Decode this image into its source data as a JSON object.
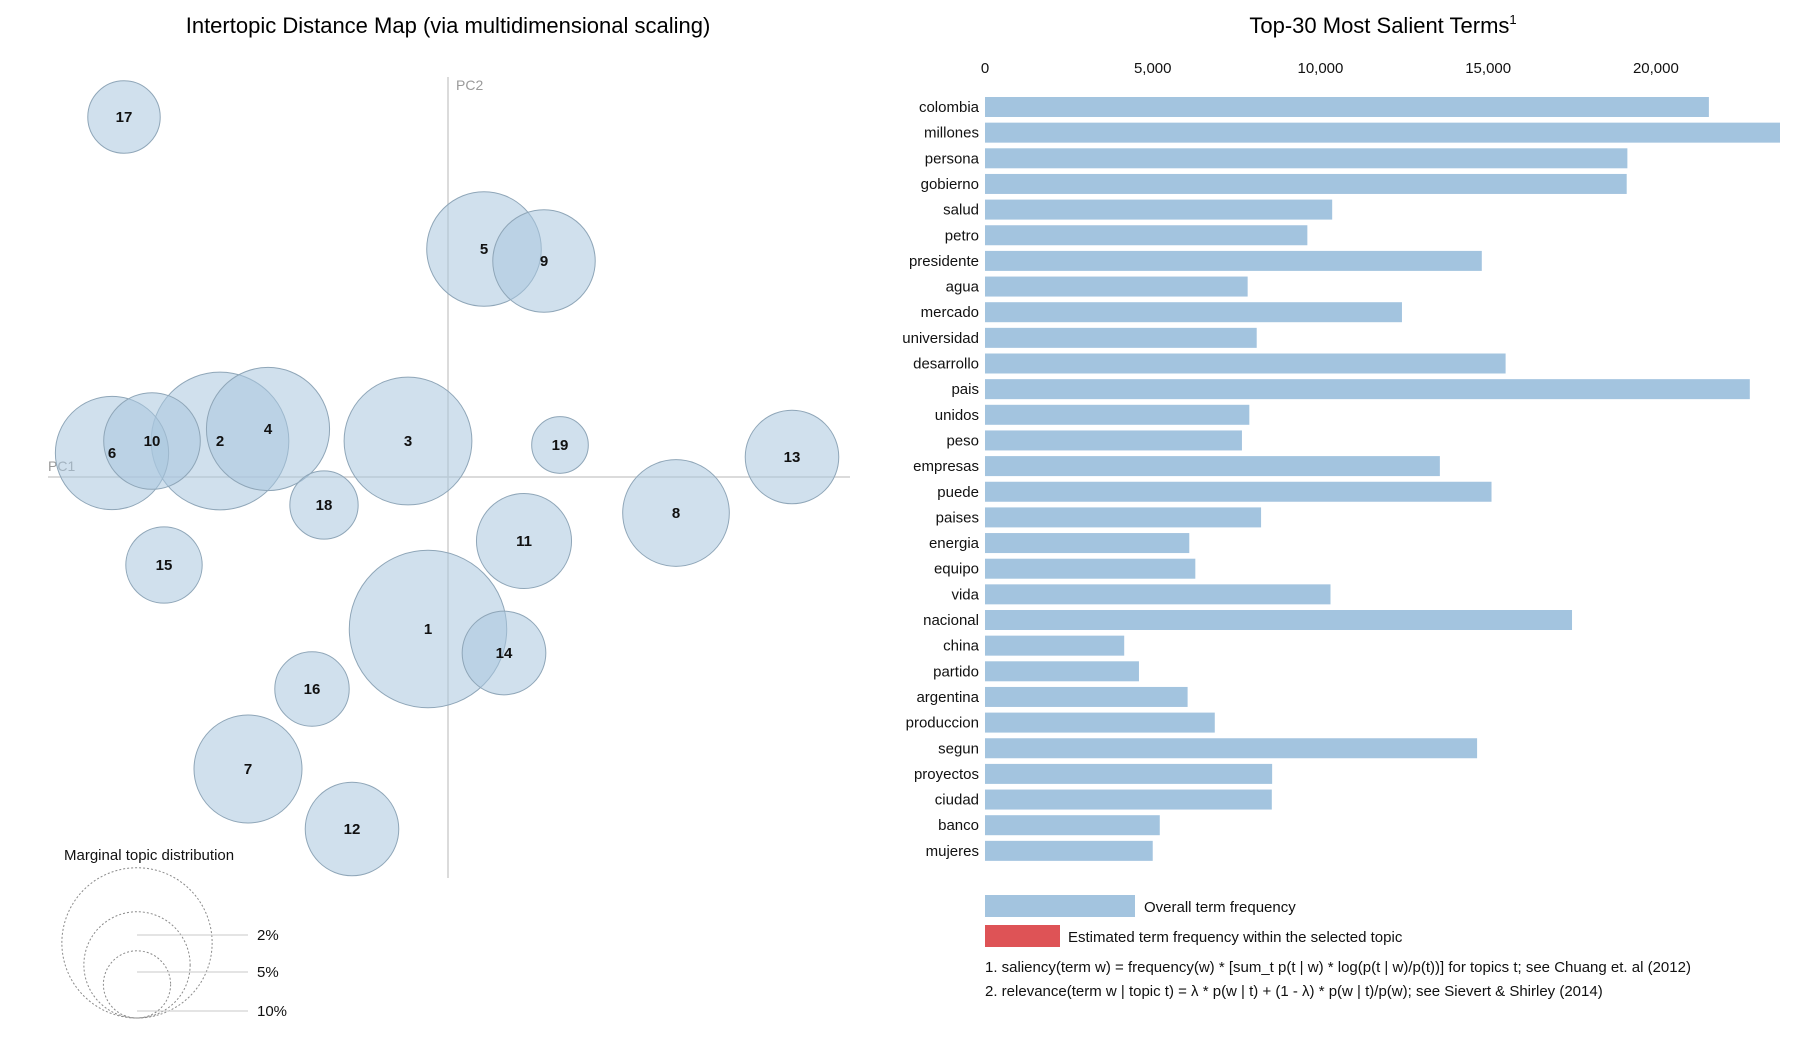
{
  "left_title": "Intertopic Distance Map (via multidimensional scaling)",
  "right_title": "Top-30 Most Salient Terms",
  "right_title_sup": "1",
  "colors": {
    "bubble_fill": "#a9c6de",
    "bubble_stroke": "#8fa6b8",
    "bar": "#a3c4df",
    "selected_bar": "#de5356",
    "axis": "#cfcfcf"
  },
  "chart_data": [
    {
      "type": "scatter",
      "subtype": "bubble",
      "title": "Intertopic Distance Map (via multidimensional scaling)",
      "xlabel": "PC1",
      "ylabel": "PC2",
      "grid": false,
      "points": [
        {
          "topic": "1",
          "x": -0.05,
          "y": -0.38,
          "size_pct": 8.5
        },
        {
          "topic": "2",
          "x": -0.57,
          "y": 0.09,
          "size_pct": 6.5
        },
        {
          "topic": "3",
          "x": -0.1,
          "y": 0.09,
          "size_pct": 5.6
        },
        {
          "topic": "4",
          "x": -0.45,
          "y": 0.12,
          "size_pct": 5.2
        },
        {
          "topic": "5",
          "x": 0.09,
          "y": 0.57,
          "size_pct": 4.5
        },
        {
          "topic": "6",
          "x": -0.84,
          "y": 0.06,
          "size_pct": 4.4
        },
        {
          "topic": "7",
          "x": -0.5,
          "y": -0.73,
          "size_pct": 4.0
        },
        {
          "topic": "8",
          "x": 0.57,
          "y": -0.09,
          "size_pct": 3.9
        },
        {
          "topic": "9",
          "x": 0.24,
          "y": 0.54,
          "size_pct": 3.6
        },
        {
          "topic": "10",
          "x": -0.74,
          "y": 0.09,
          "size_pct": 3.2
        },
        {
          "topic": "11",
          "x": 0.19,
          "y": -0.16,
          "size_pct": 3.1
        },
        {
          "topic": "12",
          "x": -0.24,
          "y": -0.88,
          "size_pct": 3.0
        },
        {
          "topic": "13",
          "x": 0.86,
          "y": 0.05,
          "size_pct": 3.0
        },
        {
          "topic": "14",
          "x": 0.14,
          "y": -0.44,
          "size_pct": 2.4
        },
        {
          "topic": "15",
          "x": -0.71,
          "y": -0.22,
          "size_pct": 2.0
        },
        {
          "topic": "16",
          "x": -0.34,
          "y": -0.53,
          "size_pct": 1.9
        },
        {
          "topic": "17",
          "x": -0.81,
          "y": 0.9,
          "size_pct": 1.8
        },
        {
          "topic": "18",
          "x": -0.31,
          "y": -0.07,
          "size_pct": 1.6
        },
        {
          "topic": "19",
          "x": 0.28,
          "y": 0.08,
          "size_pct": 1.1
        }
      ],
      "size_legend": {
        "title": "Marginal topic distribution",
        "entries": [
          {
            "label": "2%",
            "pct": 2
          },
          {
            "label": "5%",
            "pct": 5
          },
          {
            "label": "10%",
            "pct": 10
          }
        ]
      }
    },
    {
      "type": "bar",
      "orientation": "horizontal",
      "title": "Top-30 Most Salient Terms",
      "xlim": [
        0,
        23700
      ],
      "xticks": [
        0,
        5000,
        10000,
        15000,
        20000
      ],
      "xtick_labels": [
        "0",
        "5,000",
        "10,000",
        "15,000",
        "20,000"
      ],
      "categories": [
        "colombia",
        "millones",
        "persona",
        "gobierno",
        "salud",
        "petro",
        "presidente",
        "agua",
        "mercado",
        "universidad",
        "desarrollo",
        "pais",
        "unidos",
        "peso",
        "empresas",
        "puede",
        "paises",
        "energia",
        "equipo",
        "vida",
        "nacional",
        "china",
        "partido",
        "argentina",
        "produccion",
        "segun",
        "proyectos",
        "ciudad",
        "banco",
        "mujeres"
      ],
      "series": [
        {
          "name": "Overall term frequency",
          "values": [
            21580,
            23700,
            19150,
            19130,
            10350,
            9610,
            14810,
            7830,
            12430,
            8100,
            15520,
            22800,
            7880,
            7660,
            13560,
            15100,
            8230,
            6090,
            6270,
            10300,
            17500,
            4150,
            4590,
            6040,
            6850,
            14670,
            8560,
            8550,
            5210,
            5000
          ]
        }
      ],
      "legend": [
        {
          "label": "Overall term frequency",
          "color": "#a3c4df"
        },
        {
          "label": "Estimated term frequency within the selected topic",
          "color": "#de5356"
        }
      ],
      "footnotes": [
        "1. saliency(term w) = frequency(w) * [sum_t p(t | w) * log(p(t | w)/p(t))] for topics t; see Chuang et. al (2012)",
        "2. relevance(term w | topic t) = λ * p(w | t) + (1 - λ) * p(w | t)/p(w); see Sievert & Shirley (2014)"
      ]
    }
  ]
}
